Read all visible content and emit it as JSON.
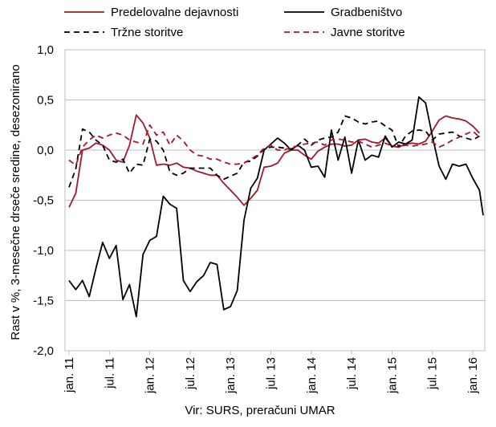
{
  "chart_data": {
    "type": "line",
    "title": "",
    "xlabel": "",
    "ylabel": "Rast v %, 3-mesečne drseče sredine, desezonirano",
    "source": "Vir: SURS, preračuni UMAR",
    "ylim": [
      -2.0,
      1.0
    ],
    "yticks": [
      1.0,
      0.5,
      0.0,
      -0.5,
      -1.0,
      -1.5,
      -2.0
    ],
    "ytick_labels": [
      "1,0",
      "0,5",
      "0,0",
      "-0,5",
      "-1,0",
      "-1,5",
      "-2,0"
    ],
    "grid": true,
    "legend_position": "top",
    "x_tick_months": [
      "2011-01",
      "2011-07",
      "2012-01",
      "2012-07",
      "2013-01",
      "2013-07",
      "2014-01",
      "2014-07",
      "2015-01",
      "2015-07",
      "2016-01"
    ],
    "x_tick_labels": [
      "jan. 11",
      "jul. 11",
      "jan. 12",
      "jul. 12",
      "jan. 13",
      "jul. 13",
      "jan. 14",
      "jul. 14",
      "jan. 15",
      "jul. 15",
      "jan. 16"
    ],
    "x_start": "2011-01",
    "x_end": "2016-01",
    "series": [
      {
        "name": "Predelovalne dejavnosti",
        "color": "#A3182C",
        "dash": "solid",
        "values": [
          -0.57,
          -0.43,
          0.0,
          0.02,
          0.07,
          0.05,
          0.0,
          -0.1,
          -0.12,
          0.05,
          0.35,
          0.27,
          0.12,
          -0.15,
          -0.14,
          -0.15,
          -0.13,
          -0.17,
          -0.18,
          -0.21,
          -0.23,
          -0.25,
          -0.25,
          -0.33,
          -0.4,
          -0.47,
          -0.55,
          -0.48,
          -0.4,
          -0.17,
          -0.16,
          -0.13,
          -0.03,
          0.0,
          0.0,
          -0.05,
          -0.09,
          -0.01,
          0.03,
          0.06,
          0.06,
          0.04,
          0.05,
          0.1,
          0.11,
          0.08,
          0.07,
          0.12,
          0.04,
          0.03,
          0.06,
          0.07,
          0.06,
          0.09,
          0.19,
          0.3,
          0.34,
          0.32,
          0.31,
          0.29,
          0.24,
          0.17
        ]
      },
      {
        "name": "Gradbeništvo",
        "color": "#000000",
        "dash": "solid",
        "values": [
          -1.3,
          -1.39,
          -1.3,
          -1.46,
          -1.18,
          -0.92,
          -1.08,
          -0.95,
          -1.49,
          -1.34,
          -1.66,
          -1.04,
          -0.9,
          -0.86,
          -0.46,
          -0.54,
          -0.58,
          -1.3,
          -1.41,
          -1.31,
          -1.25,
          -1.12,
          -1.14,
          -1.59,
          -1.56,
          -1.4,
          -0.7,
          -0.38,
          -0.28,
          0.0,
          0.06,
          0.12,
          0.07,
          0.0,
          0.05,
          0.0,
          -0.17,
          -0.16,
          -0.27,
          0.2,
          -0.1,
          0.13,
          -0.23,
          0.1,
          -0.1,
          -0.05,
          -0.07,
          0.14,
          0.03,
          0.08,
          0.06,
          0.1,
          0.53,
          0.47,
          0.14,
          -0.16,
          -0.29,
          -0.14,
          -0.16,
          -0.14,
          -0.28,
          -0.4,
          -0.65
        ]
      },
      {
        "name": "Tržne storitve",
        "color": "#000000",
        "dash": "dashed",
        "values": [
          -0.37,
          -0.19,
          0.21,
          0.18,
          0.1,
          0.05,
          -0.1,
          -0.12,
          -0.09,
          -0.23,
          -0.14,
          -0.15,
          0.11,
          0.09,
          0.0,
          -0.22,
          -0.25,
          -0.23,
          -0.18,
          -0.18,
          -0.18,
          -0.18,
          -0.25,
          -0.29,
          -0.26,
          -0.23,
          -0.12,
          -0.11,
          -0.06,
          0.01,
          0.03,
          0.03,
          0.02,
          0.01,
          0.05,
          0.11,
          0.05,
          0.1,
          0.12,
          0.13,
          0.18,
          0.34,
          0.32,
          0.28,
          0.26,
          0.28,
          0.29,
          0.24,
          0.2,
          0.03,
          0.14,
          0.19,
          0.2,
          0.19,
          0.1,
          0.16,
          0.17,
          0.18,
          0.14,
          0.12,
          0.1,
          0.14
        ]
      },
      {
        "name": "Javne storitve",
        "color": "#A3182C",
        "dash": "dashed",
        "values": [
          -0.1,
          -0.15,
          0.03,
          0.1,
          0.15,
          0.12,
          0.15,
          0.17,
          0.15,
          0.1,
          0.08,
          0.06,
          0.25,
          0.15,
          0.18,
          0.05,
          0.15,
          0.09,
          0.0,
          -0.05,
          -0.06,
          -0.09,
          -0.09,
          -0.12,
          -0.14,
          -0.14,
          -0.13,
          -0.09,
          -0.05,
          0.02,
          0.05,
          0.0,
          0.0,
          0.03,
          0.04,
          0.06,
          0.07,
          0.08,
          0.05,
          0.1,
          0.11,
          0.1,
          0.08,
          0.09,
          0.06,
          0.03,
          0.05,
          0.07,
          0.04,
          0.03,
          0.05,
          0.04,
          0.05,
          0.06,
          0.08,
          0.03,
          0.06,
          0.1,
          0.13,
          0.16,
          0.19,
          0.13
        ]
      }
    ]
  }
}
